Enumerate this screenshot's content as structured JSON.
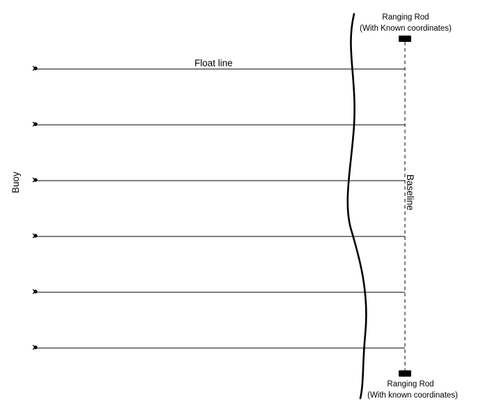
{
  "diagram": {
    "float_line_label": "Float line",
    "buoy_label": "Buoy",
    "baseline_label": "Baseline",
    "top_rod": {
      "title": "Ranging Rod",
      "subtitle": "(With Known coordinates)"
    },
    "bottom_rod": {
      "title": "Ranging Rod",
      "subtitle": "(With known coordinates)"
    },
    "float_line_count": 6,
    "colors": {
      "ink": "#000000",
      "background": "#ffffff"
    },
    "icons": {
      "buoy": "buoy-marker-icon",
      "rod": "ranging-rod-icon"
    }
  }
}
